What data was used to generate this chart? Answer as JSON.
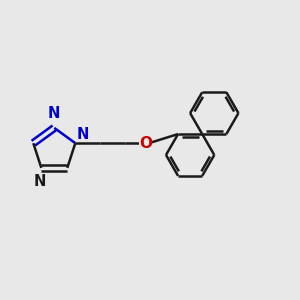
{
  "background_color": "#e8e8e8",
  "bond_color": "#1a1a1a",
  "n_color": "#0000cc",
  "o_color": "#cc0000",
  "bond_width": 1.8,
  "font_size": 10.5,
  "fig_size": [
    3.0,
    3.0
  ],
  "dpi": 100,
  "xlim": [
    0,
    1
  ],
  "ylim": [
    0,
    1
  ]
}
